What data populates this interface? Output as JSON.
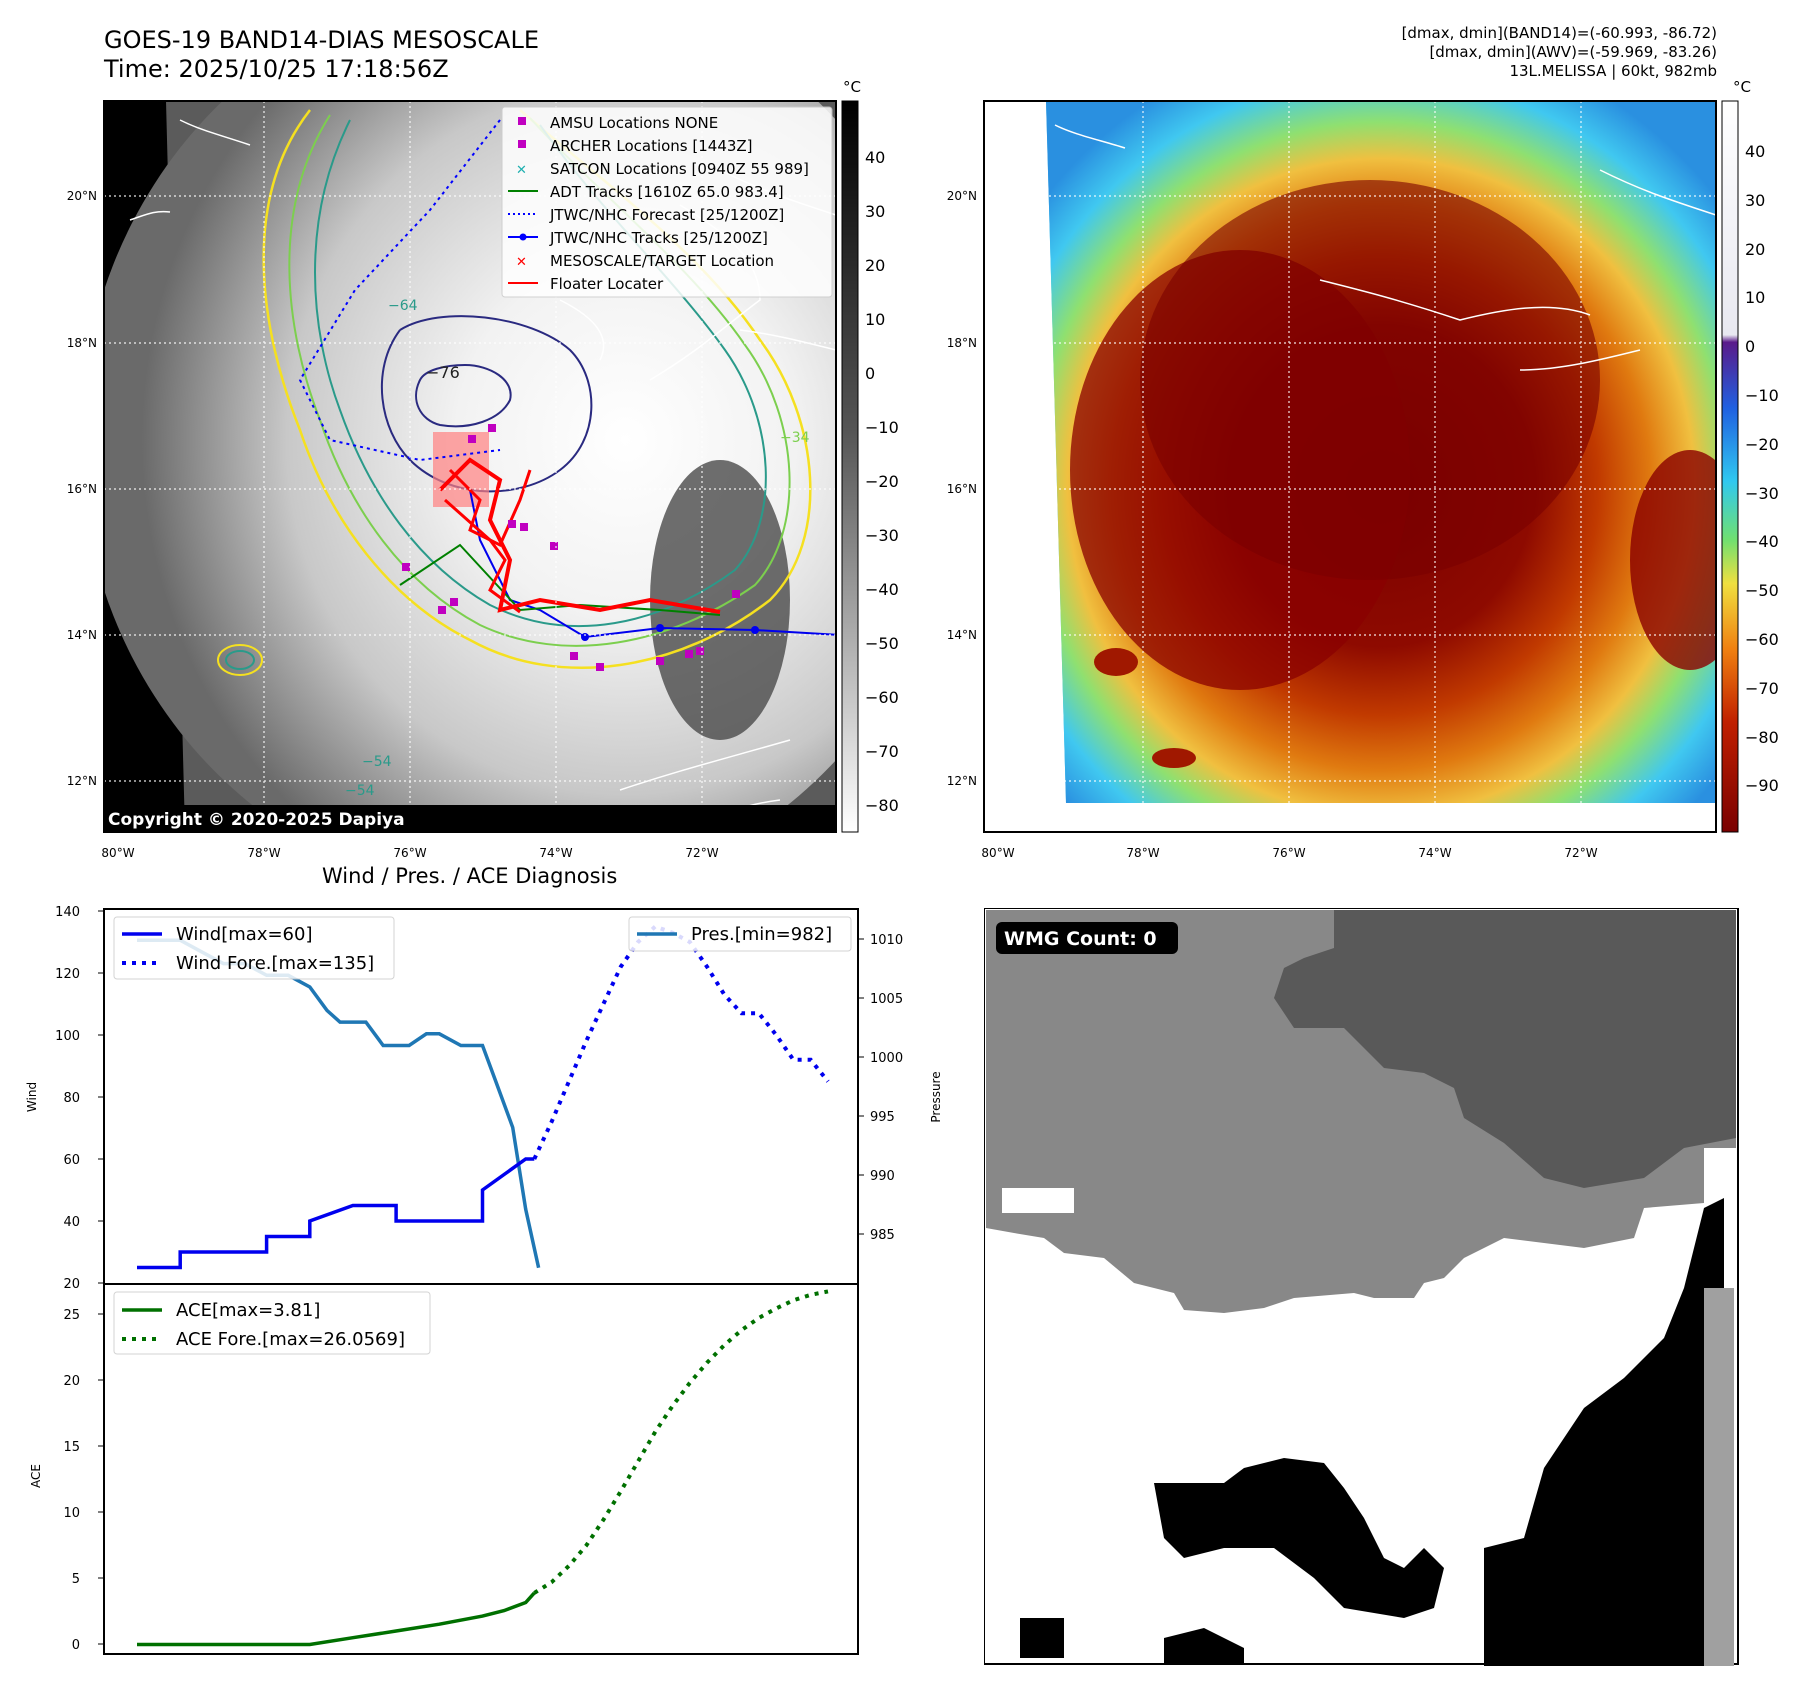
{
  "header": {
    "title_line1": "GOES-19 BAND14-DIAS MESOSCALE",
    "title_line2": "Time: 2025/10/25 17:18:56Z",
    "info_line1": "[dmax, dmin](BAND14)=(-60.993, -86.72)",
    "info_line2": "[dmax, dmin](AWV)=(-59.969, -83.26)",
    "info_line3": "13L.MELISSA | 60kt, 982mb"
  },
  "map_axes": {
    "lon_ticks": [
      "80°W",
      "78°W",
      "76°W",
      "74°W",
      "72°W"
    ],
    "lat_ticks": [
      "20°N",
      "18°N",
      "16°N",
      "14°N",
      "12°N"
    ]
  },
  "left_map": {
    "copyright": "Copyright © 2020-2025 Dapiya",
    "contour_labels": [
      "−76",
      "−64",
      "−54",
      "−54",
      "−34"
    ],
    "legend": [
      {
        "label": "AMSU Locations NONE",
        "color": "#c000c0"
      },
      {
        "label": "ARCHER Locations [1443Z]",
        "color": "#c000c0"
      },
      {
        "label": "SATCON Locations [0940Z 55 989]",
        "color": "#20b0b0"
      },
      {
        "label": "ADT Tracks [1610Z 65.0 983.4]",
        "color": "#008000"
      },
      {
        "label": "JTWC/NHC Forecast [25/1200Z]",
        "color": "#0000ff"
      },
      {
        "label": "JTWC/NHC Tracks [25/1200Z]",
        "color": "#0000ff"
      },
      {
        "label": "MESOSCALE/TARGET Location",
        "color": "#ff0000"
      },
      {
        "label": "Floater Locater",
        "color": "#ff0000"
      }
    ],
    "colorbar": {
      "unit": "°C",
      "ticks": [
        "40",
        "30",
        "20",
        "10",
        "0",
        "−10",
        "−20",
        "−30",
        "−40",
        "−50",
        "−60",
        "−70",
        "−80"
      ]
    }
  },
  "right_map": {
    "colorbar": {
      "unit": "°C",
      "ticks": [
        "40",
        "30",
        "20",
        "10",
        "0",
        "−10",
        "−20",
        "−30",
        "−40",
        "−50",
        "−60",
        "−70",
        "−80",
        "−90"
      ]
    }
  },
  "diagnosis": {
    "title": "Wind / Pres. / ACE Diagnosis",
    "wmg_count": "WMG Count: 0"
  },
  "chart_data": [
    {
      "type": "line",
      "title": "Wind / Pres. / ACE Diagnosis",
      "ylabel": "Wind",
      "ylim": [
        20,
        140
      ],
      "yticks": [
        "140",
        "120",
        "100",
        "80",
        "60",
        "40",
        "20"
      ],
      "y2label": "Pressure",
      "y2lim": [
        980.7,
        1012.5
      ],
      "y2ticks": [
        "1010",
        "1005",
        "1000",
        "995",
        "990",
        "985"
      ],
      "series": [
        {
          "name": "Wind[max=60]",
          "axis": "left",
          "color": "#0000ee",
          "style": "solid",
          "x": [
            0,
            1,
            1,
            2,
            2,
            3,
            3,
            4,
            4,
            5,
            5,
            6,
            6,
            7,
            7,
            8,
            8,
            8.5,
            9,
            9.2
          ],
          "values": [
            25,
            25,
            30,
            30,
            30,
            30,
            35,
            35,
            40,
            45,
            45,
            45,
            40,
            40,
            40,
            40,
            50,
            55,
            60,
            60
          ]
        },
        {
          "name": "Wind Fore.[max=135]",
          "axis": "left",
          "color": "#0000ee",
          "style": "dotted",
          "x": [
            9.2,
            9.6,
            10,
            10.4,
            10.8,
            11.2,
            11.6,
            12,
            12.4,
            12.8,
            13.2,
            13.6,
            14,
            14.4,
            14.8,
            15.2,
            15.6,
            16
          ],
          "values": [
            60,
            72,
            85,
            98,
            110,
            122,
            130,
            135,
            133,
            130,
            122,
            113,
            107,
            107,
            100,
            92,
            92,
            85
          ]
        },
        {
          "name": "Pres.[min=982]",
          "axis": "right",
          "color": "#1f77b4",
          "style": "solid",
          "x": [
            0,
            1,
            1.5,
            2,
            2.5,
            3,
            3.5,
            4,
            4.4,
            4.7,
            5.3,
            5.7,
            6.3,
            6.7,
            7,
            7.5,
            8,
            8.3,
            8.7,
            9,
            9.3
          ],
          "values": [
            1010,
            1010,
            1009,
            1008,
            1008,
            1007,
            1007,
            1006,
            1004,
            1003,
            1003,
            1001,
            1001,
            1002,
            1002,
            1001,
            1001,
            998,
            994,
            987,
            982
          ]
        }
      ],
      "legend_left": [
        "Wind[max=60]",
        "Wind Fore.[max=135]"
      ],
      "legend_right": [
        "Pres.[min=982]"
      ]
    },
    {
      "type": "line",
      "ylabel": "ACE",
      "ylim": [
        -0.7,
        26.6
      ],
      "yticks": [
        "25",
        "20",
        "15",
        "10",
        "5",
        "0"
      ],
      "series": [
        {
          "name": "ACE[max=3.81]",
          "color": "#007000",
          "style": "solid",
          "x": [
            0,
            1,
            2,
            3,
            4,
            5,
            6,
            7,
            8,
            8.5,
            9,
            9.2
          ],
          "values": [
            0,
            0,
            0,
            0,
            0,
            0.5,
            1.0,
            1.5,
            2.1,
            2.5,
            3.1,
            3.81
          ]
        },
        {
          "name": "ACE Fore.[max=26.0569]",
          "color": "#007000",
          "style": "dotted",
          "x": [
            9.2,
            9.6,
            10,
            10.4,
            10.8,
            11.2,
            11.6,
            12,
            12.4,
            12.8,
            13.2,
            13.6,
            14,
            14.4,
            14.8,
            15.2,
            15.6,
            16
          ],
          "values": [
            3.81,
            4.6,
            5.8,
            7.3,
            9.2,
            11.3,
            13.5,
            15.7,
            17.6,
            19.3,
            20.8,
            22.1,
            23.2,
            24.1,
            24.8,
            25.4,
            25.8,
            26.0569
          ]
        }
      ]
    }
  ]
}
